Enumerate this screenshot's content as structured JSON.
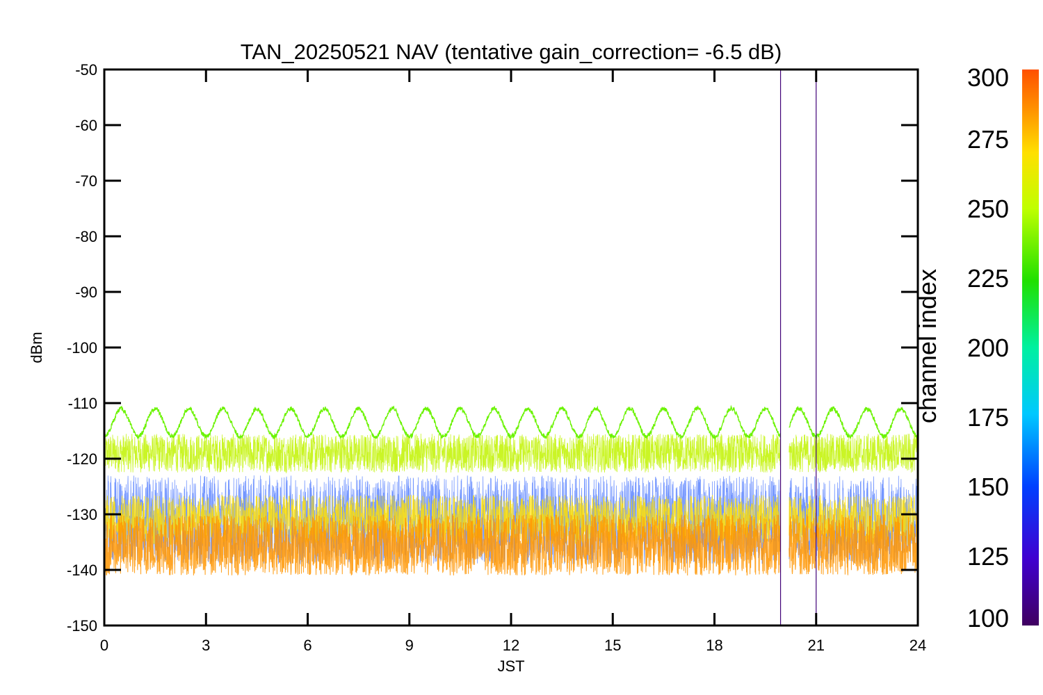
{
  "chart_data": {
    "type": "line",
    "title": "TAN_20250521 NAV (tentative gain_correction= -6.5 dB)",
    "xlabel": "JST",
    "ylabel": "dBm",
    "xlim": [
      0,
      24
    ],
    "ylim": [
      -150,
      -50
    ],
    "xticks": [
      "0",
      "3",
      "6",
      "9",
      "12",
      "15",
      "18",
      "21",
      "24"
    ],
    "yticks": [
      "-50",
      "-60",
      "-70",
      "-80",
      "-90",
      "-100",
      "-110",
      "-120",
      "-130",
      "-140",
      "-150"
    ],
    "colorbar": {
      "label": "channel index",
      "range": [
        100,
        300
      ],
      "ticks": [
        "300",
        "275",
        "250",
        "225",
        "200",
        "175",
        "150",
        "125",
        "100"
      ],
      "colormap": "rainbow"
    },
    "data_gap_x": [
      19.95,
      20.2
    ],
    "series": [
      {
        "channel_index": 240,
        "pattern": "sinusoid",
        "y_min": -116,
        "y_max": -111,
        "cycles": 24,
        "noise_dbm": 0.4
      },
      {
        "channel_index": 258,
        "pattern": "noise",
        "y_center": -119,
        "y_spread": 3.5
      },
      {
        "channel_index": 285,
        "pattern": "noise",
        "y_center": -135.5,
        "y_spread": 5.5
      },
      {
        "channel_index": 270,
        "pattern": "noise",
        "y_center": -131,
        "y_spread": 4.5
      },
      {
        "channel_index": 150,
        "pattern": "noise",
        "y_center": -131,
        "y_spread": 8
      }
    ],
    "spikes": [
      {
        "x": 19.95,
        "y_from": -150,
        "y_to": -50,
        "channel_index": 105
      },
      {
        "x": 21.0,
        "y_from": -150,
        "y_to": -52,
        "channel_index": 105
      }
    ]
  }
}
